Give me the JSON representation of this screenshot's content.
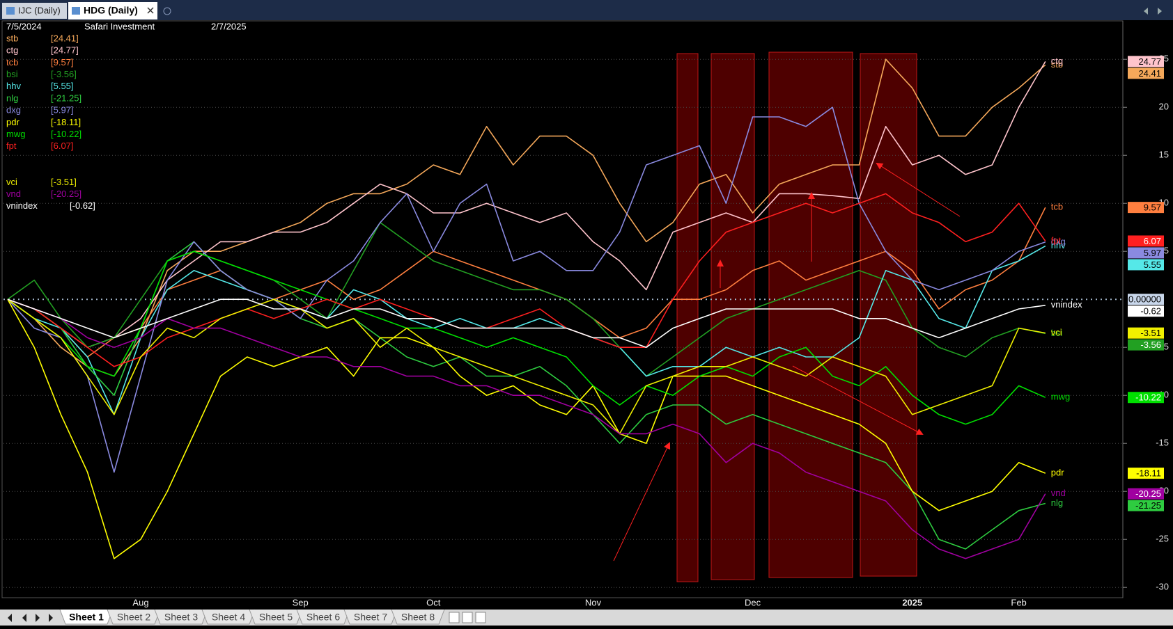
{
  "tabs": [
    "IJC (Daily)",
    "HDG (Daily)"
  ],
  "header": {
    "start_date": "7/5/2024",
    "name": "Safari Investment",
    "end_date": "2/7/2025"
  },
  "sheets": [
    "Sheet 1",
    "Sheet 2",
    "Sheet 3",
    "Sheet 4",
    "Sheet 5",
    "Sheet 6",
    "Sheet 7",
    "Sheet 8"
  ],
  "chart_data": {
    "type": "line",
    "categories": [
      null,
      null,
      null,
      null,
      null,
      "Aug",
      null,
      null,
      null,
      null,
      null,
      "Sep",
      null,
      null,
      null,
      null,
      "Oct",
      null,
      null,
      null,
      null,
      null,
      "Nov",
      null,
      null,
      null,
      null,
      null,
      "Dec",
      null,
      null,
      null,
      null,
      null,
      "2025",
      null,
      null,
      null,
      "Feb",
      null
    ],
    "ylim": [
      -31,
      29
    ],
    "yticks": [
      -30,
      -25,
      -20,
      -15,
      -10,
      -5,
      5,
      10,
      15,
      20,
      25
    ],
    "grid": true,
    "reference_line": {
      "value": 0,
      "label": "0.00000"
    },
    "series": [
      {
        "name": "stb",
        "color": "#f5a85a",
        "value_label": "[24.41]",
        "values": [
          0,
          -2,
          -5,
          -7,
          -8,
          -4,
          3,
          5,
          5,
          6,
          7,
          8,
          10,
          11,
          11,
          12,
          14,
          13,
          18,
          14,
          17,
          17,
          15,
          10,
          6,
          8,
          12,
          13,
          9,
          12,
          13,
          14,
          14,
          25,
          22,
          17,
          17,
          20,
          22,
          24.41
        ]
      },
      {
        "name": "ctg",
        "color": "#ffc4cc",
        "value_label": "[24.77]",
        "values": [
          0,
          -1,
          -3,
          -5,
          -4,
          -2,
          2,
          4,
          6,
          6,
          7,
          7,
          8,
          10,
          12,
          11,
          9,
          9,
          10,
          9,
          8,
          9,
          6,
          4,
          1,
          7,
          8,
          9,
          8,
          11,
          11,
          10.8,
          10.5,
          18,
          14,
          15,
          13,
          14,
          20,
          24.77
        ]
      },
      {
        "name": "tcb",
        "color": "#ff7f3f",
        "value_label": "[9.57]",
        "values": [
          0,
          -1,
          -3,
          -6,
          -4,
          -3,
          1,
          2,
          3,
          1,
          0,
          1,
          2,
          0,
          1,
          3,
          5,
          4,
          3,
          2,
          1,
          0,
          -2,
          -4,
          -3,
          0,
          0,
          1,
          3,
          4,
          2,
          3,
          4,
          5,
          3,
          -1,
          1,
          2,
          4,
          9.57
        ]
      },
      {
        "name": "bsi",
        "color": "#22a022",
        "value_label": "[-3.56]",
        "values": [
          0,
          2,
          -2,
          -5,
          -4,
          0,
          4,
          5,
          4,
          3,
          2,
          0,
          -2,
          3,
          8,
          6,
          4,
          3,
          2,
          1,
          1,
          0,
          -2,
          -5,
          -8,
          -6,
          -4,
          -2,
          -1,
          0,
          1,
          2,
          3,
          2,
          -3,
          -5,
          -6,
          -4,
          -3,
          -3.56
        ]
      },
      {
        "name": "hhv",
        "color": "#55e8e8",
        "value_label": "[5.55]",
        "values": [
          0,
          -2,
          -3,
          -6,
          -12,
          -4,
          1,
          3,
          2,
          1,
          0,
          -1,
          -2,
          1,
          0,
          -2,
          -3,
          -2,
          -3,
          -3,
          -2,
          -3,
          -4,
          -5,
          -8,
          -7,
          -7,
          -5,
          -6,
          -5,
          -6,
          -6,
          -4,
          3,
          2,
          -2,
          -3,
          3,
          4,
          5.55
        ]
      },
      {
        "name": "nlg",
        "color": "#2ecc40",
        "value_label": "[-21.25]",
        "values": [
          0,
          -1,
          -3,
          -7,
          -10,
          -3,
          4,
          6,
          3,
          1,
          0,
          -2,
          -3,
          -2,
          -4,
          -6,
          -7,
          -6,
          -8,
          -8,
          -7,
          -9,
          -12,
          -15,
          -12,
          -11,
          -11,
          -13,
          -12,
          -13,
          -14,
          -15,
          -16,
          -17,
          -20,
          -25,
          -26,
          -24,
          -22,
          -21.25
        ]
      },
      {
        "name": "dxg",
        "color": "#8a8ae0",
        "value_label": "[5.97]",
        "values": [
          0,
          -3,
          -4,
          -8,
          -18,
          -8,
          2,
          6,
          3,
          1,
          0,
          -2,
          2,
          4,
          8,
          11,
          5,
          10,
          12,
          4,
          5,
          3,
          3,
          7,
          14,
          15,
          16,
          10,
          19,
          19,
          18,
          20,
          10,
          5,
          2,
          1,
          2,
          3,
          5,
          5.97
        ]
      },
      {
        "name": "pdr",
        "color": "#ffff00",
        "value_label": "[-18.11]",
        "values": [
          0,
          -5,
          -12,
          -18,
          -27,
          -25,
          -20,
          -14,
          -8,
          -6,
          -7,
          -6,
          -5,
          -8,
          -4,
          -4,
          -5,
          -8,
          -10,
          -9,
          -11,
          -12,
          -9,
          -14,
          -15,
          -8,
          -8,
          -8,
          -9,
          -10,
          -11,
          -12,
          -13,
          -15,
          -20,
          -22,
          -21,
          -20,
          -17,
          -18.11
        ]
      },
      {
        "name": "mwg",
        "color": "#00e000",
        "value_label": "[-10.22]",
        "values": [
          0,
          -2,
          -4,
          -7,
          -8,
          -3,
          4,
          5,
          4,
          3,
          2,
          1,
          0,
          -1,
          -2,
          -3,
          -3,
          -4,
          -5,
          -4,
          -5,
          -6,
          -9,
          -11,
          -9,
          -10,
          -8,
          -7,
          -8,
          -6,
          -5,
          -8,
          -9,
          -7,
          -10,
          -12,
          -13,
          -12,
          -9,
          -10.22
        ]
      },
      {
        "name": "fpt",
        "color": "#ff2020",
        "value_label": "[6.07]",
        "values": [
          0,
          -1,
          -3,
          -5,
          -7,
          -6,
          -4,
          -3,
          -2,
          -1,
          -2,
          -1,
          0,
          -1,
          0,
          -1,
          -2,
          -3,
          -3,
          -2,
          -1,
          -3,
          -4,
          -5,
          -5,
          0,
          4,
          7,
          8,
          9,
          10,
          9,
          10,
          11,
          9,
          8,
          6,
          7,
          10,
          6.07
        ]
      },
      {
        "name": "vci",
        "color": "#f0f000",
        "value_label": "[-3.51]",
        "values": [
          0,
          -2,
          -4,
          -8,
          -12,
          -6,
          -3,
          -4,
          -2,
          -1,
          0,
          -1,
          -3,
          -2,
          -5,
          -3,
          -5,
          -6,
          -7,
          -8,
          -9,
          -10,
          -11,
          -14,
          -9,
          -8,
          -7,
          -7,
          -6,
          -7,
          -8,
          -6,
          -7,
          -8,
          -12,
          -11,
          -10,
          -9,
          -3,
          -3.51
        ]
      },
      {
        "name": "vnd",
        "color": "#a000a0",
        "value_label": "[-20.25]",
        "values": [
          0,
          -1,
          -2,
          -4,
          -5,
          -4,
          -2,
          -3,
          -3,
          -4,
          -5,
          -6,
          -6,
          -7,
          -7,
          -8,
          -8,
          -9,
          -9,
          -10,
          -10,
          -11,
          -12,
          -14,
          -14,
          -13,
          -14,
          -17,
          -15,
          -16,
          -18,
          -19,
          -20,
          -21,
          -24,
          -26,
          -27,
          -26,
          -25,
          -20.25
        ]
      },
      {
        "name": "vnindex",
        "color": "#ffffff",
        "value_label": "[-0.62]",
        "values": [
          0,
          -1,
          -2,
          -3,
          -4,
          -3,
          -2,
          -1,
          0,
          0,
          -1,
          -1,
          -2,
          -1,
          -1,
          -2,
          -2,
          -3,
          -3,
          -3,
          -3,
          -3,
          -4,
          -4,
          -5,
          -3,
          -2,
          -1,
          -1,
          -1,
          -1,
          -1,
          -2,
          -2,
          -3,
          -4,
          -3,
          -2,
          -1,
          -0.62
        ]
      }
    ]
  }
}
